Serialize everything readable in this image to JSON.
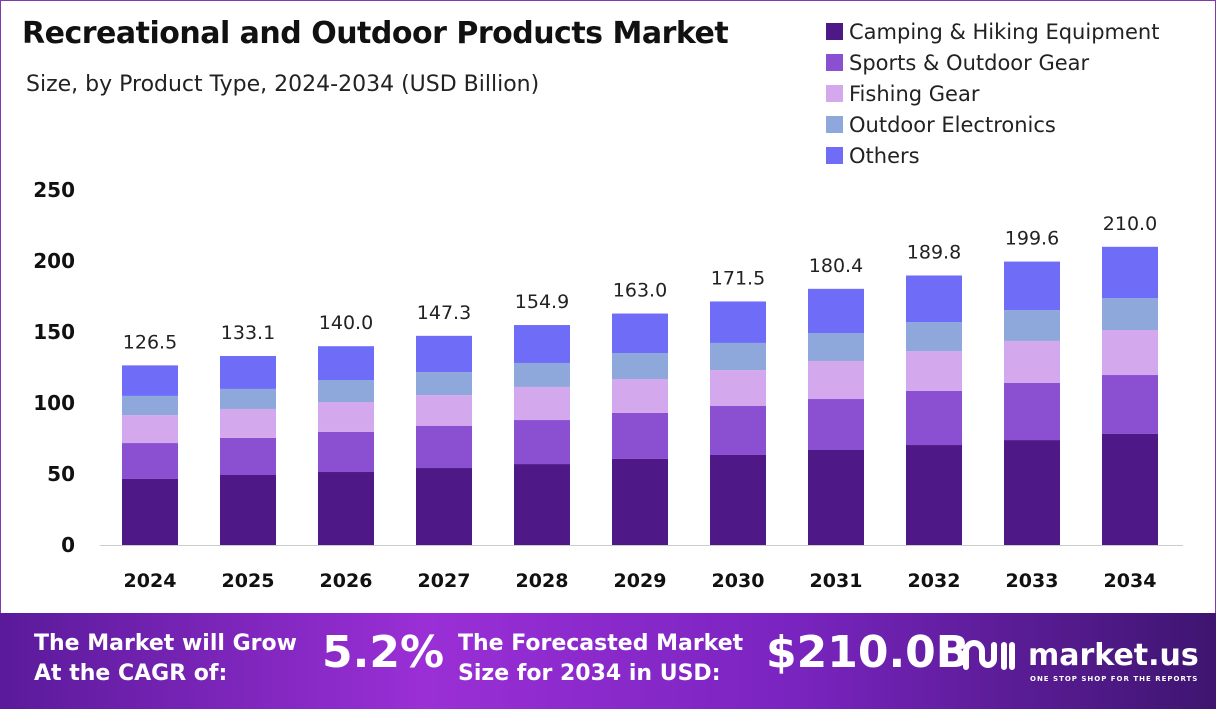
{
  "chart_data": {
    "type": "bar",
    "stacked": true,
    "title": "Recreational and Outdoor Products Market",
    "subtitle": "Size, by Product Type, 2024-2034 (USD Billion)",
    "categories": [
      "2024",
      "2025",
      "2026",
      "2027",
      "2028",
      "2029",
      "2030",
      "2031",
      "2032",
      "2033",
      "2034"
    ],
    "totals": [
      "126.5",
      "133.1",
      "140.0",
      "147.3",
      "154.9",
      "163.0",
      "171.5",
      "180.4",
      "189.8",
      "199.6",
      "210.0"
    ],
    "series": [
      {
        "name": "Camping & Hiking Equipment",
        "color": "#4e1886",
        "values": [
          46.5,
          49.3,
          51.4,
          54.2,
          57.0,
          60.6,
          63.4,
          66.9,
          70.4,
          73.9,
          78.2
        ]
      },
      {
        "name": "Sports & Outdoor Gear",
        "color": "#8b4fd1",
        "values": [
          25.3,
          26.1,
          28.2,
          29.6,
          31.0,
          32.4,
          34.5,
          35.9,
          38.1,
          40.2,
          41.5
        ]
      },
      {
        "name": "Fishing Gear",
        "color": "#d4a8ec",
        "values": [
          19.7,
          20.4,
          21.1,
          21.8,
          23.3,
          23.9,
          25.3,
          26.8,
          28.1,
          29.6,
          31.7
        ]
      },
      {
        "name": "Outdoor Electronics",
        "color": "#8fa8dc",
        "values": [
          13.5,
          14.1,
          15.5,
          16.2,
          16.9,
          18.3,
          19.1,
          19.7,
          20.4,
          21.8,
          22.5
        ]
      },
      {
        "name": "Others",
        "color": "#6f6cf8",
        "values": [
          21.5,
          23.2,
          23.8,
          25.5,
          26.7,
          27.8,
          29.2,
          31.1,
          32.8,
          34.1,
          36.1
        ]
      }
    ],
    "yticks": [
      "0",
      "50",
      "100",
      "150",
      "200",
      "250"
    ],
    "ylim": [
      0,
      250
    ],
    "grid": false,
    "legend": "top-right"
  },
  "footer": {
    "cagr_label_1": "The Market will Grow",
    "cagr_label_2": "At the CAGR of:",
    "cagr_value": "5.2%",
    "forecast_label_1": "The Forecasted Market",
    "forecast_label_2": "Size for 2034 in USD:",
    "forecast_value": "$210.0B",
    "logo_name": "market.us",
    "logo_tagline": "ONE STOP SHOP FOR THE REPORTS"
  }
}
